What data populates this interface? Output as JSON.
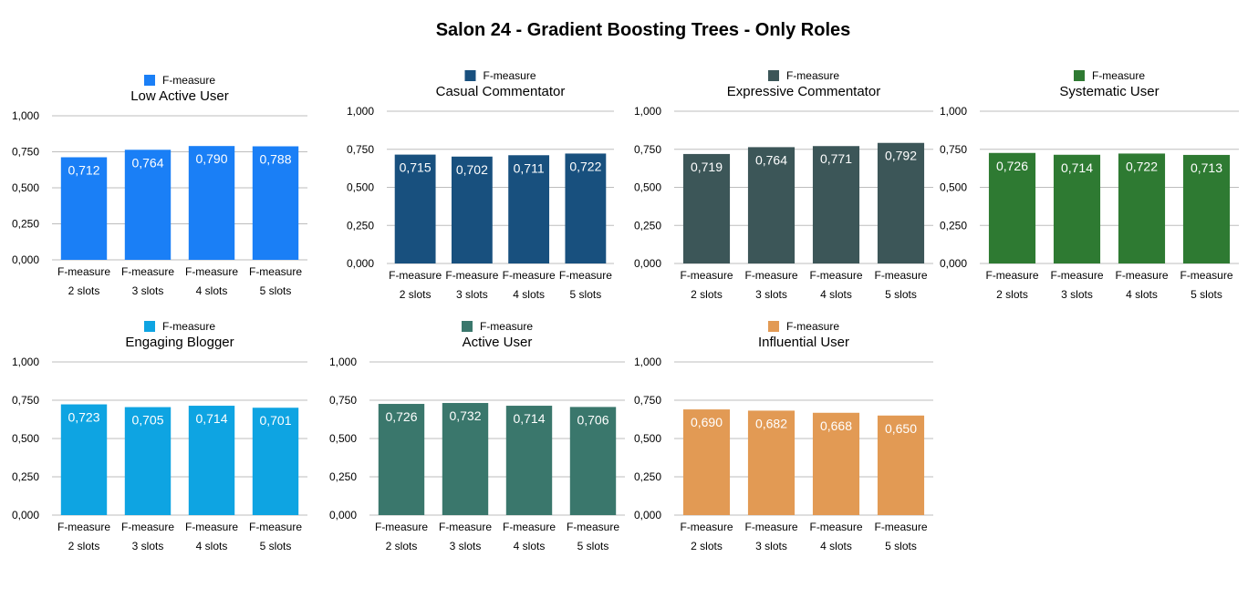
{
  "title": "Salon 24 - Gradient Boosting Trees - Only Roles",
  "chart_data": [
    {
      "type": "bar",
      "title": "Low Active User",
      "legend": "F-measure",
      "color": "#1a7ff6",
      "categories": [
        [
          "F-measure",
          "2 slots"
        ],
        [
          "F-measure",
          "3 slots"
        ],
        [
          "F-measure",
          "4 slots"
        ],
        [
          "F-measure",
          "5 slots"
        ]
      ],
      "values": [
        0.712,
        0.764,
        0.79,
        0.788
      ],
      "value_labels": [
        "0,712",
        "0,764",
        "0,790",
        "0,788"
      ],
      "yticks": [
        "0,000",
        "0,250",
        "0,500",
        "0,750",
        "1,000"
      ],
      "ylim": [
        0,
        1
      ]
    },
    {
      "type": "bar",
      "title": "Casual Commentator",
      "legend": "F-measure",
      "color": "#18507e",
      "categories": [
        [
          "F-measure",
          "2 slots"
        ],
        [
          "F-measure",
          "3 slots"
        ],
        [
          "F-measure",
          "4 slots"
        ],
        [
          "F-measure",
          "5 slots"
        ]
      ],
      "values": [
        0.715,
        0.702,
        0.711,
        0.722
      ],
      "value_labels": [
        "0,715",
        "0,702",
        "0,711",
        "0,722"
      ],
      "yticks": [
        "0,000",
        "0,250",
        "0,500",
        "0,750",
        "1,000"
      ],
      "ylim": [
        0,
        1
      ]
    },
    {
      "type": "bar",
      "title": "Expressive Commentator",
      "legend": "F-measure",
      "color": "#3c5658",
      "categories": [
        [
          "F-measure",
          "2 slots"
        ],
        [
          "F-measure",
          "3 slots"
        ],
        [
          "F-measure",
          "4 slots"
        ],
        [
          "F-measure",
          "5 slots"
        ]
      ],
      "values": [
        0.719,
        0.764,
        0.771,
        0.792
      ],
      "value_labels": [
        "0,719",
        "0,764",
        "0,771",
        "0,792"
      ],
      "yticks": [
        "0,000",
        "0,250",
        "0,500",
        "0,750",
        "1,000"
      ],
      "ylim": [
        0,
        1
      ]
    },
    {
      "type": "bar",
      "title": "Systematic User",
      "legend": "F-measure",
      "color": "#2e7a32",
      "categories": [
        [
          "F-measure",
          "2 slots"
        ],
        [
          "F-measure",
          "3 slots"
        ],
        [
          "F-measure",
          "4 slots"
        ],
        [
          "F-measure",
          "5 slots"
        ]
      ],
      "values": [
        0.726,
        0.714,
        0.722,
        0.713
      ],
      "value_labels": [
        "0,726",
        "0,714",
        "0,722",
        "0,713"
      ],
      "yticks": [
        "0,000",
        "0,250",
        "0,500",
        "0,750",
        "1,000"
      ],
      "ylim": [
        0,
        1
      ]
    },
    {
      "type": "bar",
      "title": "Engaging Blogger",
      "legend": "F-measure",
      "color": "#0ea4e2",
      "categories": [
        [
          "F-measure",
          "2 slots"
        ],
        [
          "F-measure",
          "3 slots"
        ],
        [
          "F-measure",
          "4 slots"
        ],
        [
          "F-measure",
          "5 slots"
        ]
      ],
      "values": [
        0.723,
        0.705,
        0.714,
        0.701
      ],
      "value_labels": [
        "0,723",
        "0,705",
        "0,714",
        "0,701"
      ],
      "yticks": [
        "0,000",
        "0,250",
        "0,500",
        "0,750",
        "1,000"
      ],
      "ylim": [
        0,
        1
      ]
    },
    {
      "type": "bar",
      "title": "Active User",
      "legend": "F-measure",
      "color": "#3a776c",
      "categories": [
        [
          "F-measure",
          "2 slots"
        ],
        [
          "F-measure",
          "3 slots"
        ],
        [
          "F-measure",
          "4 slots"
        ],
        [
          "F-measure",
          "5 slots"
        ]
      ],
      "values": [
        0.726,
        0.732,
        0.714,
        0.706
      ],
      "value_labels": [
        "0,726",
        "0,732",
        "0,714",
        "0,706"
      ],
      "yticks": [
        "0,000",
        "0,250",
        "0,500",
        "0,750",
        "1,000"
      ],
      "ylim": [
        0,
        1
      ]
    },
    {
      "type": "bar",
      "title": "Influential User",
      "legend": "F-measure",
      "color": "#e29a54",
      "categories": [
        [
          "F-measure",
          "2 slots"
        ],
        [
          "F-measure",
          "3 slots"
        ],
        [
          "F-measure",
          "4 slots"
        ],
        [
          "F-measure",
          "5 slots"
        ]
      ],
      "values": [
        0.69,
        0.682,
        0.668,
        0.65
      ],
      "value_labels": [
        "0,690",
        "0,682",
        "0,668",
        "0,650"
      ],
      "yticks": [
        "0,000",
        "0,250",
        "0,500",
        "0,750",
        "1,000"
      ],
      "ylim": [
        0,
        1
      ]
    }
  ]
}
